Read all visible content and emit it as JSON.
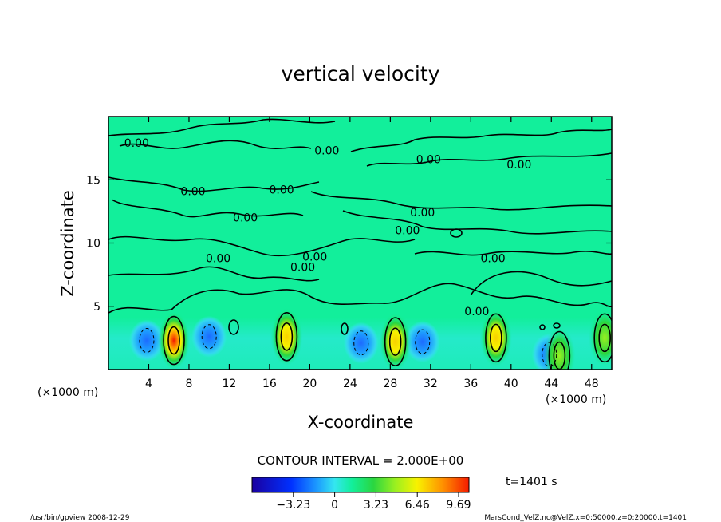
{
  "chart_data": {
    "type": "heatmap",
    "title": "vertical velocity",
    "xlabel": "X-coordinate",
    "ylabel": "Z-coordinate",
    "x_unit_left": "(×1000 m)",
    "x_unit_right": "(×1000 m)",
    "xlim": [
      0,
      50
    ],
    "ylim": [
      0,
      20
    ],
    "x_ticks": [
      "4",
      "8",
      "12",
      "16",
      "20",
      "24",
      "28",
      "32",
      "36",
      "40",
      "44",
      "48"
    ],
    "x_tick_values": [
      4,
      8,
      12,
      16,
      20,
      24,
      28,
      32,
      36,
      40,
      44,
      48
    ],
    "y_ticks": [
      "5",
      "10",
      "15"
    ],
    "y_tick_values": [
      5,
      10,
      15
    ],
    "contour_labels": [
      {
        "text": "0.00",
        "x": 2.8,
        "z": 17.6
      },
      {
        "text": "0.00",
        "x": 21.7,
        "z": 17.0
      },
      {
        "text": "0.00",
        "x": 31.8,
        "z": 16.3
      },
      {
        "text": "0.00",
        "x": 40.8,
        "z": 15.9
      },
      {
        "text": "0.00",
        "x": 8.4,
        "z": 13.8
      },
      {
        "text": "0.00",
        "x": 17.2,
        "z": 13.9
      },
      {
        "text": "0.00",
        "x": 13.6,
        "z": 11.7
      },
      {
        "text": "0.00",
        "x": 31.2,
        "z": 12.1
      },
      {
        "text": "0.00",
        "x": 29.7,
        "z": 10.7
      },
      {
        "text": "0.00",
        "x": 10.9,
        "z": 8.5
      },
      {
        "text": "0.00",
        "x": 19.3,
        "z": 7.8
      },
      {
        "text": "0.00",
        "x": 20.5,
        "z": 8.6
      },
      {
        "text": "0.00",
        "x": 38.2,
        "z": 8.5
      },
      {
        "text": "0.00",
        "x": 36.6,
        "z": 4.3
      }
    ],
    "updrafts": [
      {
        "x": 6.5,
        "z": 2.3,
        "peak": 9.69
      },
      {
        "x": 17.7,
        "z": 2.6,
        "peak": 6.46
      },
      {
        "x": 28.5,
        "z": 2.2,
        "peak": 6.46
      },
      {
        "x": 38.5,
        "z": 2.5,
        "peak": 6.46
      },
      {
        "x": 44.8,
        "z": 1.1,
        "peak": 3.23
      },
      {
        "x": 49.3,
        "z": 2.5,
        "peak": 3.23
      }
    ],
    "downdrafts": [
      {
        "x": 3.8,
        "z": 2.3
      },
      {
        "x": 10.0,
        "z": 2.6
      },
      {
        "x": 25.1,
        "z": 2.1
      },
      {
        "x": 31.2,
        "z": 2.2
      },
      {
        "x": 43.8,
        "z": 1.2
      }
    ],
    "colorbar": {
      "ticks": [
        "−3.23",
        "0",
        "3.23",
        "6.46",
        "9.69"
      ],
      "tick_values": [
        -3.23,
        0,
        3.23,
        6.46,
        9.69
      ],
      "range": [
        -6.46,
        10.5
      ]
    },
    "contour_interval_text": "CONTOUR INTERVAL = 2.000E+00",
    "time_text": "t=1401 s",
    "footer_left": "/usr/bin/gpview   2008-12-29",
    "footer_right": "MarsCond_VelZ.nc@VelZ,x=0:50000,z=0:20000,t=1401",
    "colors": {
      "background_field": "#12ef9b",
      "contour_line": "#000000",
      "colorbar_stops": [
        "#1a00a0",
        "#0030ff",
        "#1d9bff",
        "#34e6f0",
        "#12ef9b",
        "#2ad640",
        "#9af020",
        "#f8f200",
        "#ff9000",
        "#f41a00"
      ]
    }
  }
}
